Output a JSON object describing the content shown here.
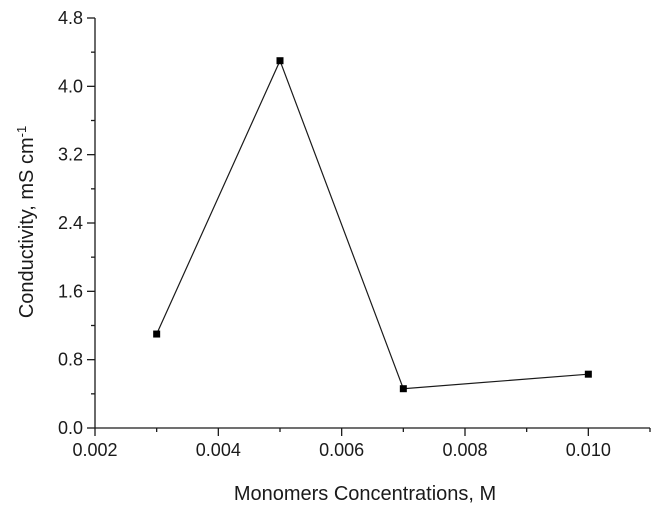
{
  "chart_data": {
    "type": "line",
    "xlabel": "Monomers Concentrations, M",
    "ylabel_main": "Conductivity, mS cm",
    "ylabel_sup": "-1",
    "xlim": [
      0.002,
      0.011
    ],
    "ylim": [
      0.0,
      4.8
    ],
    "x_ticks": [
      0.002,
      0.004,
      0.006,
      0.008,
      0.01
    ],
    "x_tick_labels": [
      "0.002",
      "0.004",
      "0.006",
      "0.008",
      "0.010"
    ],
    "y_ticks": [
      0.0,
      0.8,
      1.6,
      2.4,
      3.2,
      4.0,
      4.8
    ],
    "y_tick_labels": [
      "0.0",
      "0.8",
      "1.6",
      "2.4",
      "3.2",
      "4.0",
      "4.8"
    ],
    "grid": false,
    "marker": "square",
    "series": [
      {
        "x": [
          0.003,
          0.005,
          0.007,
          0.01
        ],
        "y": [
          1.1,
          4.3,
          0.46,
          0.63
        ]
      }
    ]
  }
}
